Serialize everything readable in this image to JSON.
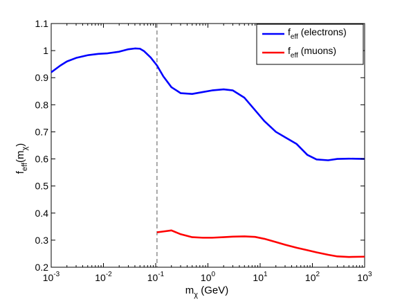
{
  "chart_data": {
    "type": "line",
    "xscale": "log",
    "xlim": [
      0.001,
      1000
    ],
    "ylim": [
      0.2,
      1.1
    ],
    "xticks": [
      0.001,
      0.01,
      0.1,
      1,
      10,
      100,
      1000
    ],
    "xtick_labels": [
      {
        "base": "10",
        "exp": "-3"
      },
      {
        "base": "10",
        "exp": "-2"
      },
      {
        "base": "10",
        "exp": "-1"
      },
      {
        "base": "10",
        "exp": "0"
      },
      {
        "base": "10",
        "exp": "1"
      },
      {
        "base": "10",
        "exp": "2"
      },
      {
        "base": "10",
        "exp": "3"
      }
    ],
    "yticks": [
      0.2,
      0.3,
      0.4,
      0.5,
      0.6,
      0.7,
      0.8,
      0.9,
      1,
      1.1
    ],
    "ytick_labels": [
      "0.2",
      "0.3",
      "0.4",
      "0.5",
      "0.6",
      "0.7",
      "0.8",
      "0.9",
      "1",
      "1.1"
    ],
    "xlabel": {
      "main": "m",
      "sub": "χ",
      "rest": " (GeV)"
    },
    "ylabel": {
      "f": "f",
      "sub": "eff",
      "m": "(m",
      "msub": "χ",
      "close": ")"
    },
    "legend_position": "top-right",
    "grid": false,
    "vline": {
      "x": 0.106,
      "style": "dashed",
      "color": "#555555"
    },
    "series": [
      {
        "legend_main": "f",
        "legend_sub": "eff",
        "legend_rest": " (electrons)",
        "color": "#0000ff",
        "x": [
          0.001,
          0.0015,
          0.002,
          0.003,
          0.005,
          0.008,
          0.012,
          0.02,
          0.03,
          0.04,
          0.05,
          0.06,
          0.08,
          0.106,
          0.14,
          0.2,
          0.3,
          0.5,
          0.8,
          1.2,
          2,
          3,
          5,
          8,
          12,
          20,
          30,
          50,
          80,
          120,
          200,
          300,
          500,
          1000
        ],
        "y": [
          0.92,
          0.945,
          0.96,
          0.973,
          0.983,
          0.988,
          0.99,
          0.996,
          1.005,
          1.008,
          1.007,
          0.998,
          0.975,
          0.945,
          0.905,
          0.865,
          0.843,
          0.84,
          0.847,
          0.853,
          0.857,
          0.853,
          0.826,
          0.78,
          0.74,
          0.7,
          0.68,
          0.655,
          0.615,
          0.598,
          0.595,
          0.6,
          0.601,
          0.6
        ]
      },
      {
        "legend_main": "f",
        "legend_sub": "eff",
        "legend_rest": " (muons)",
        "color": "#ff0000",
        "x": [
          0.106,
          0.14,
          0.2,
          0.3,
          0.5,
          0.8,
          1.2,
          2,
          3,
          5,
          8,
          12,
          20,
          30,
          50,
          80,
          120,
          200,
          300,
          500,
          1000
        ],
        "y": [
          0.329,
          0.332,
          0.336,
          0.322,
          0.311,
          0.309,
          0.309,
          0.311,
          0.313,
          0.314,
          0.312,
          0.305,
          0.293,
          0.283,
          0.272,
          0.263,
          0.255,
          0.246,
          0.24,
          0.238,
          0.239
        ]
      }
    ]
  }
}
